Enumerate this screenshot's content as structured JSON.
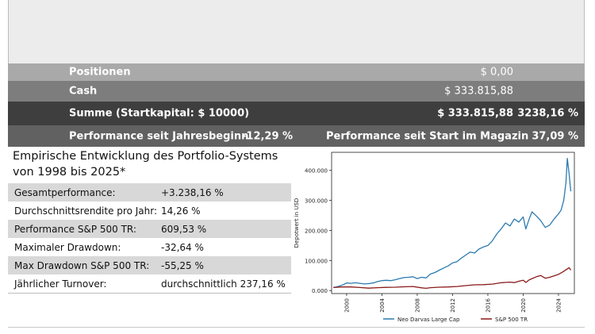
{
  "summary": {
    "positionen": {
      "label": "Positionen",
      "value": "$ 0,00"
    },
    "cash": {
      "label": "Cash",
      "value": "$ 333.815,88"
    },
    "summe": {
      "label": "Summe (Startkapital: $ 10000)",
      "value": "$ 333.815,88",
      "percent": "3238,16 %"
    },
    "performance": {
      "ytd_label": "Performance seit Jahresbeginn",
      "ytd_value": "-12,29 %",
      "start_label": "Performance seit Start im Magazin",
      "start_value": "37,09 %"
    }
  },
  "stats": {
    "title": "Empirische Entwicklung des Portfolio-Systems von 1998 bis 2025*",
    "rows": [
      {
        "label": "Gesamtperformance:",
        "value": "+3.238,16 %"
      },
      {
        "label": "Durchschnittsrendite pro Jahr:",
        "value": "14,26 %"
      },
      {
        "label": "Performance S&P 500 TR:",
        "value": "609,53 %"
      },
      {
        "label": "Maximaler Drawdown:",
        "value": "-32,64 %"
      },
      {
        "label": "Max Drawdown S&P 500 TR:",
        "value": "-55,25 %"
      },
      {
        "label": "Jährlicher Turnover:",
        "value": "durchschnittlich 237,16 %"
      }
    ]
  },
  "chart_data": {
    "type": "line",
    "ylabel": "Depotwert in USD",
    "xlabel": "",
    "xlim": [
      1998.3,
      2025.8
    ],
    "ylim": [
      -10000,
      460000
    ],
    "x_ticks": [
      2000,
      2004,
      2008,
      2012,
      2016,
      2020,
      2024
    ],
    "y_ticks": [
      0,
      100000,
      200000,
      300000,
      400000
    ],
    "y_tick_labels": [
      "0.000",
      "100.000",
      "200.000",
      "300.000",
      "400.000"
    ],
    "legend_position": "bottom",
    "grid": false,
    "series": [
      {
        "name": "Neo Darvas Large Cap",
        "color": "#2b7bb0",
        "x": [
          1998.5,
          1999.0,
          1999.5,
          2000.0,
          2000.5,
          2001.0,
          2001.5,
          2002.0,
          2002.5,
          2003.0,
          2003.5,
          2004.0,
          2004.5,
          2005.0,
          2005.5,
          2006.0,
          2006.5,
          2007.0,
          2007.5,
          2008.0,
          2008.5,
          2009.0,
          2009.5,
          2010.0,
          2010.5,
          2011.0,
          2011.5,
          2012.0,
          2012.5,
          2013.0,
          2013.5,
          2014.0,
          2014.5,
          2015.0,
          2015.5,
          2016.0,
          2016.5,
          2017.0,
          2017.5,
          2018.0,
          2018.5,
          2019.0,
          2019.5,
          2020.0,
          2020.3,
          2020.7,
          2021.0,
          2021.5,
          2022.0,
          2022.5,
          2023.0,
          2023.5,
          2024.0,
          2024.3,
          2024.6,
          2024.85,
          2025.0,
          2025.2,
          2025.4
        ],
        "y": [
          10000,
          13000,
          18000,
          25000,
          24000,
          26000,
          24000,
          22000,
          23000,
          25000,
          30000,
          33000,
          34000,
          33000,
          36000,
          40000,
          43000,
          44000,
          46000,
          40000,
          44000,
          42000,
          55000,
          60000,
          68000,
          75000,
          82000,
          92000,
          96000,
          108000,
          118000,
          128000,
          125000,
          138000,
          145000,
          150000,
          165000,
          188000,
          205000,
          225000,
          215000,
          238000,
          228000,
          245000,
          205000,
          240000,
          262000,
          248000,
          232000,
          210000,
          218000,
          238000,
          255000,
          268000,
          300000,
          360000,
          440000,
          390000,
          330000
        ]
      },
      {
        "name": "S&P 500 TR",
        "color": "#8b1a1a",
        "x": [
          1998.5,
          1999.5,
          2000.5,
          2001.5,
          2002.5,
          2003.5,
          2004.5,
          2005.5,
          2006.5,
          2007.5,
          2008.5,
          2009.0,
          2009.5,
          2010.5,
          2011.5,
          2012.5,
          2013.5,
          2014.5,
          2015.5,
          2016.5,
          2017.5,
          2018.5,
          2019.0,
          2019.5,
          2020.0,
          2020.3,
          2020.7,
          2021.5,
          2022.0,
          2022.5,
          2023.0,
          2023.5,
          2024.0,
          2024.5,
          2025.0,
          2025.2,
          2025.4
        ],
        "y": [
          10000,
          12000,
          12000,
          10000,
          8000,
          9500,
          10500,
          11000,
          12500,
          13500,
          9000,
          7500,
          9500,
          11000,
          12000,
          13500,
          16500,
          19000,
          19500,
          21500,
          26000,
          28000,
          26500,
          31000,
          34000,
          27000,
          36000,
          46000,
          50000,
          41000,
          44000,
          49000,
          54000,
          62000,
          72000,
          76000,
          68000
        ]
      }
    ]
  }
}
